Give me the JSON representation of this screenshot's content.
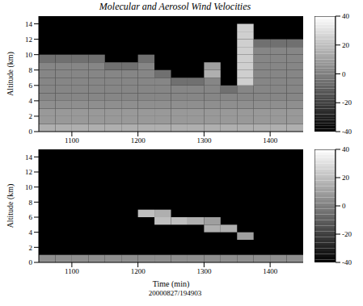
{
  "chart_data": [
    {
      "type": "heatmap",
      "title": "Molecular and Aerosol Wind Velocities",
      "y_label": "Altitude (km)",
      "xlim": [
        1050,
        1450
      ],
      "xticks": [
        1100,
        1200,
        1300,
        1400
      ],
      "ylim": [
        0,
        15
      ],
      "yticks": [
        0,
        2,
        4,
        6,
        8,
        10,
        12,
        14
      ],
      "x_bins": [
        1050,
        1075,
        1100,
        1125,
        1150,
        1175,
        1200,
        1225,
        1250,
        1275,
        1300,
        1325,
        1350,
        1375,
        1400,
        1425,
        1450
      ],
      "y_bins": [
        0,
        1,
        2,
        3,
        4,
        5,
        6,
        7,
        8,
        9,
        10,
        11,
        12,
        13,
        14,
        15
      ],
      "cells": [
        [
          15,
          15,
          15,
          15,
          15,
          15,
          15,
          15,
          15,
          15,
          15,
          15,
          15,
          15,
          15,
          15
        ],
        [
          8,
          8,
          8,
          8,
          8,
          8,
          8,
          8,
          8,
          8,
          8,
          8,
          8,
          8,
          8,
          8
        ],
        [
          8,
          8,
          8,
          8,
          8,
          8,
          8,
          8,
          8,
          8,
          8,
          8,
          8,
          8,
          8,
          8
        ],
        [
          5,
          5,
          5,
          5,
          5,
          5,
          5,
          5,
          5,
          5,
          5,
          5,
          5,
          5,
          5,
          5
        ],
        [
          2,
          2,
          2,
          2,
          2,
          2,
          2,
          2,
          2,
          2,
          2,
          2,
          2,
          2,
          2,
          2
        ],
        [
          2,
          2,
          2,
          2,
          2,
          2,
          2,
          2,
          2,
          2,
          2,
          -5,
          2,
          2,
          2,
          2
        ],
        [
          2,
          2,
          2,
          2,
          2,
          2,
          2,
          2,
          -5,
          -5,
          2,
          null,
          25,
          2,
          2,
          2
        ],
        [
          2,
          2,
          2,
          2,
          2,
          2,
          2,
          -5,
          null,
          null,
          15,
          null,
          25,
          2,
          2,
          2
        ],
        [
          2,
          2,
          2,
          2,
          -5,
          -5,
          2,
          null,
          null,
          null,
          10,
          null,
          25,
          2,
          2,
          2
        ],
        [
          -5,
          -5,
          -5,
          -5,
          null,
          null,
          -5,
          null,
          null,
          null,
          null,
          null,
          25,
          2,
          2,
          2
        ],
        [
          null,
          null,
          null,
          null,
          null,
          null,
          null,
          null,
          null,
          null,
          null,
          null,
          25,
          2,
          2,
          2
        ],
        [
          null,
          null,
          null,
          null,
          null,
          null,
          null,
          null,
          null,
          null,
          null,
          null,
          25,
          -5,
          -5,
          -5
        ],
        [
          null,
          null,
          null,
          null,
          null,
          null,
          null,
          null,
          null,
          null,
          null,
          null,
          25,
          null,
          null,
          null
        ],
        [
          null,
          null,
          null,
          null,
          null,
          null,
          null,
          null,
          null,
          null,
          null,
          null,
          25,
          null,
          null,
          null
        ],
        [
          null,
          null,
          null,
          null,
          null,
          null,
          null,
          null,
          null,
          null,
          null,
          null,
          null,
          null,
          null,
          null
        ]
      ],
      "colorbar": {
        "range": [
          -40,
          40
        ],
        "ticks": [
          -40,
          -20,
          0,
          20,
          40
        ]
      }
    },
    {
      "type": "heatmap",
      "y_label": "Altitude (km)",
      "x_label": "Time (min)",
      "annotation": "20000827/194903",
      "xlim": [
        1050,
        1450
      ],
      "xticks": [
        1100,
        1200,
        1300,
        1400
      ],
      "ylim": [
        0,
        15
      ],
      "yticks": [
        0,
        2,
        4,
        6,
        8,
        10,
        12,
        14
      ],
      "x_bins": [
        1050,
        1075,
        1100,
        1125,
        1150,
        1175,
        1200,
        1225,
        1250,
        1275,
        1300,
        1325,
        1350,
        1375,
        1400,
        1425,
        1450
      ],
      "y_bins": [
        0,
        1,
        2,
        3,
        4,
        5,
        6,
        7,
        8,
        9,
        10,
        11,
        12,
        13,
        14,
        15
      ],
      "cells": [
        [
          5,
          5,
          5,
          5,
          5,
          5,
          5,
          5,
          5,
          5,
          5,
          5,
          5,
          5,
          5,
          5
        ],
        [
          null,
          null,
          null,
          null,
          null,
          null,
          null,
          null,
          null,
          null,
          null,
          null,
          null,
          null,
          null,
          null
        ],
        [
          null,
          null,
          null,
          null,
          null,
          null,
          null,
          null,
          null,
          null,
          null,
          null,
          null,
          null,
          null,
          null
        ],
        [
          null,
          null,
          null,
          null,
          null,
          null,
          null,
          null,
          null,
          null,
          null,
          null,
          10,
          null,
          null,
          null
        ],
        [
          null,
          null,
          null,
          null,
          null,
          null,
          null,
          null,
          null,
          null,
          15,
          15,
          null,
          null,
          null,
          null
        ],
        [
          null,
          null,
          null,
          null,
          null,
          null,
          null,
          20,
          20,
          15,
          10,
          null,
          null,
          null,
          null,
          null
        ],
        [
          null,
          null,
          null,
          null,
          null,
          null,
          20,
          15,
          null,
          null,
          null,
          null,
          null,
          null,
          null,
          null
        ],
        [
          null,
          null,
          null,
          null,
          null,
          null,
          null,
          null,
          null,
          null,
          null,
          null,
          null,
          null,
          null,
          null
        ],
        [
          null,
          null,
          null,
          null,
          null,
          null,
          null,
          null,
          null,
          null,
          null,
          null,
          null,
          null,
          null,
          null
        ],
        [
          null,
          null,
          null,
          null,
          null,
          null,
          null,
          null,
          null,
          null,
          null,
          null,
          null,
          null,
          null,
          null
        ],
        [
          null,
          null,
          null,
          null,
          null,
          null,
          null,
          null,
          null,
          null,
          null,
          null,
          null,
          null,
          null,
          null
        ],
        [
          null,
          null,
          null,
          null,
          null,
          null,
          null,
          null,
          null,
          null,
          null,
          null,
          null,
          null,
          null,
          null
        ],
        [
          null,
          null,
          null,
          null,
          null,
          null,
          null,
          null,
          null,
          null,
          null,
          null,
          null,
          null,
          null,
          null
        ],
        [
          null,
          null,
          null,
          null,
          null,
          null,
          null,
          null,
          null,
          null,
          null,
          null,
          null,
          null,
          null,
          null
        ],
        [
          null,
          null,
          null,
          null,
          null,
          null,
          null,
          null,
          null,
          null,
          null,
          null,
          null,
          null,
          null,
          null
        ]
      ],
      "colorbar": {
        "range": [
          -40,
          40
        ],
        "ticks": [
          -40,
          -20,
          0,
          20,
          40
        ]
      }
    }
  ]
}
